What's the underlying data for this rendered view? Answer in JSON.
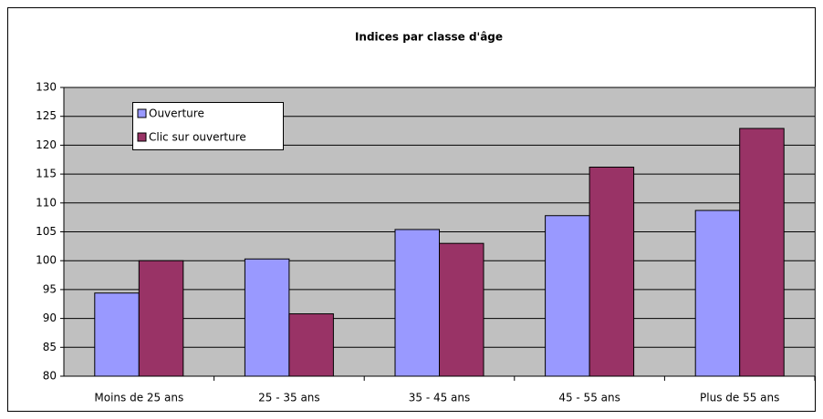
{
  "chart_data": {
    "type": "bar",
    "title": "Indices par classe d'âge",
    "categories": [
      "Moins de 25 ans",
      "25 - 35 ans",
      "35 - 45 ans",
      "45 - 55 ans",
      "Plus de 55 ans"
    ],
    "series": [
      {
        "name": "Ouverture",
        "color": "#9999ff",
        "values": [
          94.4,
          100.3,
          105.4,
          107.8,
          108.7
        ]
      },
      {
        "name": "Clic sur ouverture",
        "color": "#993366",
        "values": [
          100,
          90.8,
          103,
          116.2,
          122.9
        ]
      }
    ],
    "ylim": [
      80,
      130
    ],
    "yticks": [
      80,
      85,
      90,
      95,
      100,
      105,
      110,
      115,
      120,
      125,
      130
    ],
    "grid": true,
    "legend": "top-left"
  }
}
